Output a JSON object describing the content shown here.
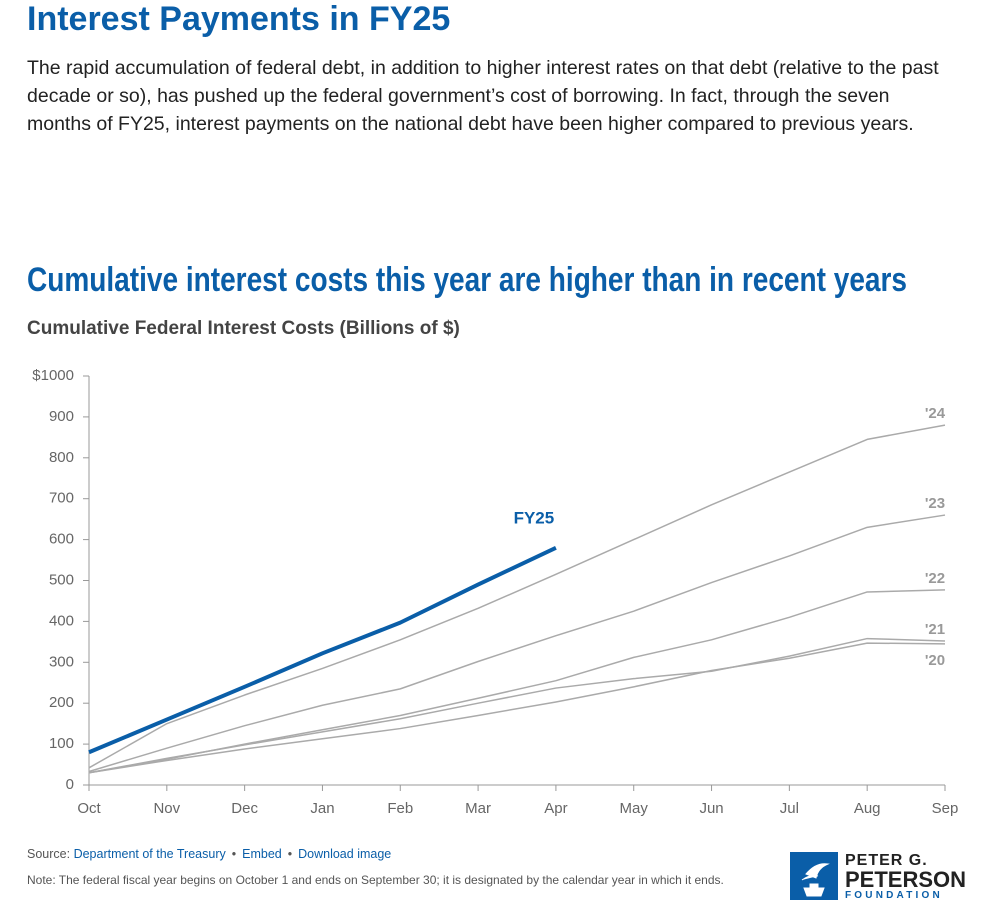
{
  "header": {
    "title": "Interest Payments in FY25",
    "paragraph": "The rapid accumulation of federal debt, in addition to higher interest rates on that debt (relative to the past decade or so), has pushed up the federal government’s cost of borrowing. In fact, through the seven months of FY25, interest payments on the national debt have been higher compared to previous years."
  },
  "chart_data": {
    "type": "line",
    "title": "Cumulative interest costs this year are higher than in recent years",
    "subtitle": "Cumulative Federal Interest Costs (Billions of $)",
    "categories": [
      "Oct",
      "Nov",
      "Dec",
      "Jan",
      "Feb",
      "Mar",
      "Apr",
      "May",
      "Jun",
      "Jul",
      "Aug",
      "Sep"
    ],
    "ylim": [
      0,
      1000
    ],
    "yticks": [
      0,
      100,
      200,
      300,
      400,
      500,
      600,
      700,
      800,
      900,
      {
        "value": 1000,
        "label": "$1000"
      }
    ],
    "grid": false,
    "series": [
      {
        "name": "'20",
        "color": "#aaaaaa",
        "values": [
          30,
          60,
          88,
          113,
          138,
          170,
          203,
          240,
          280,
          310,
          347,
          345
        ]
      },
      {
        "name": "'21",
        "color": "#aaaaaa",
        "values": [
          30,
          65,
          98,
          130,
          162,
          200,
          237,
          260,
          278,
          315,
          358,
          352
        ]
      },
      {
        "name": "'22",
        "color": "#aaaaaa",
        "values": [
          30,
          63,
          100,
          135,
          170,
          212,
          255,
          312,
          355,
          410,
          472,
          477
        ]
      },
      {
        "name": "'23",
        "color": "#aaaaaa",
        "values": [
          33,
          90,
          145,
          195,
          235,
          302,
          365,
          425,
          495,
          560,
          630,
          660
        ]
      },
      {
        "name": "'24",
        "color": "#aaaaaa",
        "values": [
          42,
          150,
          220,
          285,
          355,
          432,
          515,
          600,
          685,
          765,
          845,
          880
        ]
      },
      {
        "name": "FY25",
        "color": "#0a5ea8",
        "values": [
          80,
          160,
          240,
          322,
          397,
          490,
          580,
          null,
          null,
          null,
          null,
          null
        ]
      }
    ]
  },
  "footer": {
    "source_label": "Source:",
    "links": [
      "Department of the Treasury",
      "Embed",
      "Download image"
    ],
    "separator": "•",
    "note": "Note: The federal fiscal year begins on October 1 and ends on September 30; it is designated by the calendar year in which it ends.",
    "logo": [
      "PETER G.",
      "PETERSON",
      "FOUNDATION"
    ]
  }
}
